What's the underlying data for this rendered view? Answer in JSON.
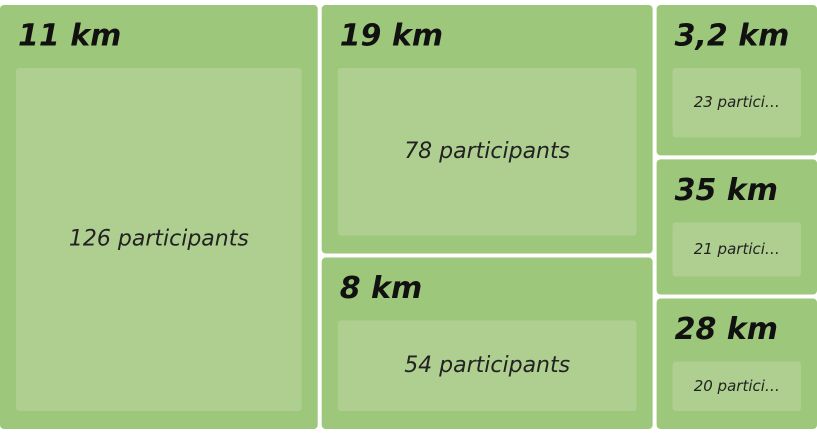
{
  "chart_data": {
    "type": "treemap",
    "categories": [
      "11 km",
      "19 km",
      "8 km",
      "3,2 km",
      "35 km",
      "28 km"
    ],
    "values": [
      126,
      78,
      54,
      23,
      21,
      20
    ],
    "value_labels": [
      "126 participants",
      "78 participants",
      "54 participants",
      "23 partici…",
      "21 partici…",
      "20 partici…"
    ],
    "color": "#9dc77a"
  }
}
